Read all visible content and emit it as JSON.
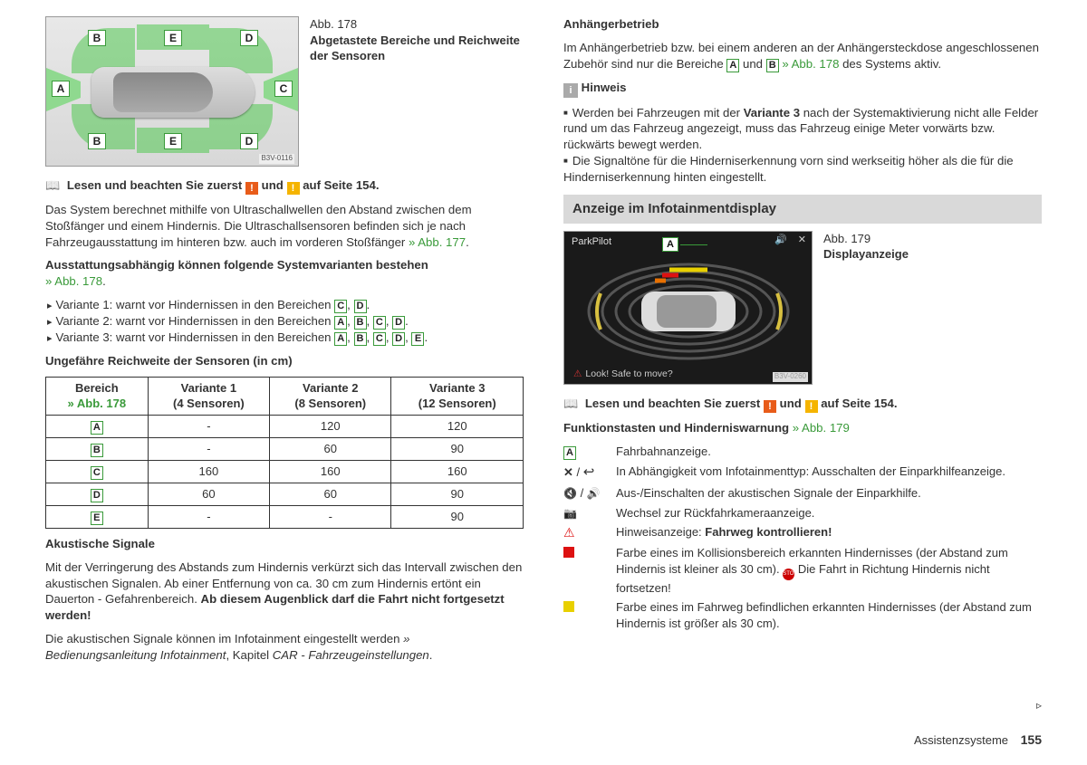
{
  "fig178": {
    "num": "Abb. 178",
    "title": "Abgetastete Bereiche und Reichweite der Sensoren",
    "code": "B3V-0116",
    "labels": {
      "A": "A",
      "B": "B",
      "C": "C",
      "D": "D",
      "E": "E"
    }
  },
  "left": {
    "read_first_pre": "Lesen und beachten Sie zuerst",
    "read_first_and": "und",
    "read_first_post": "auf Seite 154.",
    "para1a": "Das System berechnet mithilfe von Ultraschallwellen den Abstand zwischen dem Stoßfänger und einem Hindernis. Die Ultraschallsensoren befinden sich je nach Fahrzeugausstattung im hinteren bzw. auch im vorderen Stoßfänger ",
    "para1link": "» Abb. 177",
    "h_variants": "Ausstattungsabhängig können folgende Systemvarianten bestehen",
    "variants_link": "» Abb. 178",
    "v1_pre": "Variante 1: warnt vor Hindernissen in den Bereichen ",
    "v2_pre": "Variante 2: warnt vor Hindernissen in den Bereichen ",
    "v3_pre": "Variante 3: warnt vor Hindernissen in den Bereichen ",
    "table_title": "Ungefähre Reichweite der Sensoren (in cm)",
    "table": {
      "c0": "Bereich",
      "c0link": "» Abb. 178",
      "c1": "Variante 1",
      "c1s": "(4 Sensoren)",
      "c2": "Variante 2",
      "c2s": "(8 Sensoren)",
      "c3": "Variante 3",
      "c3s": "(12 Sensoren)",
      "rows": [
        [
          "A",
          "-",
          "120",
          "120"
        ],
        [
          "B",
          "-",
          "60",
          "90"
        ],
        [
          "C",
          "160",
          "160",
          "160"
        ],
        [
          "D",
          "60",
          "60",
          "90"
        ],
        [
          "E",
          "-",
          "-",
          "90"
        ]
      ]
    },
    "acoustic_h": "Akustische Signale",
    "acoustic_1": "Mit der Verringerung des Abstands zum Hindernis verkürzt sich das Intervall zwischen den akustischen Signalen. Ab einer Entfernung von ca. 30 cm zum Hindernis ertönt ein Dauerton - Gefahrenbereich. ",
    "acoustic_1b": "Ab diesem Augenblick darf die Fahrt nicht fortgesetzt werden!",
    "acoustic_2a": "Die akustischen Signale können im Infotainment eingestellt werden ",
    "acoustic_2b": "» Bedienungsanleitung Infotainment",
    "acoustic_2c": ", Kapitel ",
    "acoustic_2d": "CAR - Fahrzeugeinstellungen"
  },
  "right": {
    "trailer_h": "Anhängerbetrieb",
    "trailer_1a": "Im Anhängerbetrieb bzw. bei einem anderen an der Anhängersteckdose angeschlossenen Zubehör sind nur die Bereiche ",
    "trailer_1b": " und ",
    "trailer_link": "» Abb. 178",
    "trailer_1c": " des Systems aktiv.",
    "hint_label": "Hinweis",
    "hint_1a": "Werden bei Fahrzeugen mit der ",
    "hint_1b": "Variante 3",
    "hint_1c": " nach der Systemaktivierung nicht alle Felder rund um das Fahrzeug angezeigt, muss das Fahrzeug einige Meter vorwärts bzw. rückwärts bewegt werden.",
    "hint_2": "Die Signaltöne für die Hinderniserkennung vorn sind werkseitig höher als die für die Hinderniserkennung hinten eingestellt.",
    "section": "Anzeige im Infotainmentdisplay",
    "fig179": {
      "num": "Abb. 179",
      "title": "Displayanzeige",
      "pp": "ParkPilot",
      "A": "A",
      "bottom": "Look! Safe to move?",
      "code": "B3V-0260"
    },
    "read2_pre": "Lesen und beachten Sie zuerst",
    "read2_and": "und",
    "read2_post": "auf Seite 154.",
    "keys_h": "Funktionstasten und Hinderniswarnung ",
    "keys_link": "» Abb. 179",
    "k_A": "Fahrbahnanzeige.",
    "k_x": "In Abhängigkeit vom Infotainmenttyp: Ausschalten der Einparkhilfeanzeige.",
    "k_mute": "Aus-/Einschalten der akustischen Signale der Einparkhilfe.",
    "k_cam": "Wechsel zur Rückfahrkameraanzeige.",
    "k_warn_a": "Hinweisanzeige: ",
    "k_warn_b": "Fahrweg kontrollieren!",
    "k_red_a": "Farbe eines im Kollisionsbereich erkannten Hindernisses (der Abstand zum Hindernis ist kleiner als 30 cm). ",
    "k_red_b": " Die Fahrt in Richtung Hindernis nicht fortsetzen!",
    "k_yel": "Farbe eines im Fahrweg befindlichen erkannten Hindernisses (der Abstand zum Hindernis ist größer als 30 cm)."
  },
  "footer": {
    "chapter": "Assistenzsysteme",
    "page": "155"
  }
}
